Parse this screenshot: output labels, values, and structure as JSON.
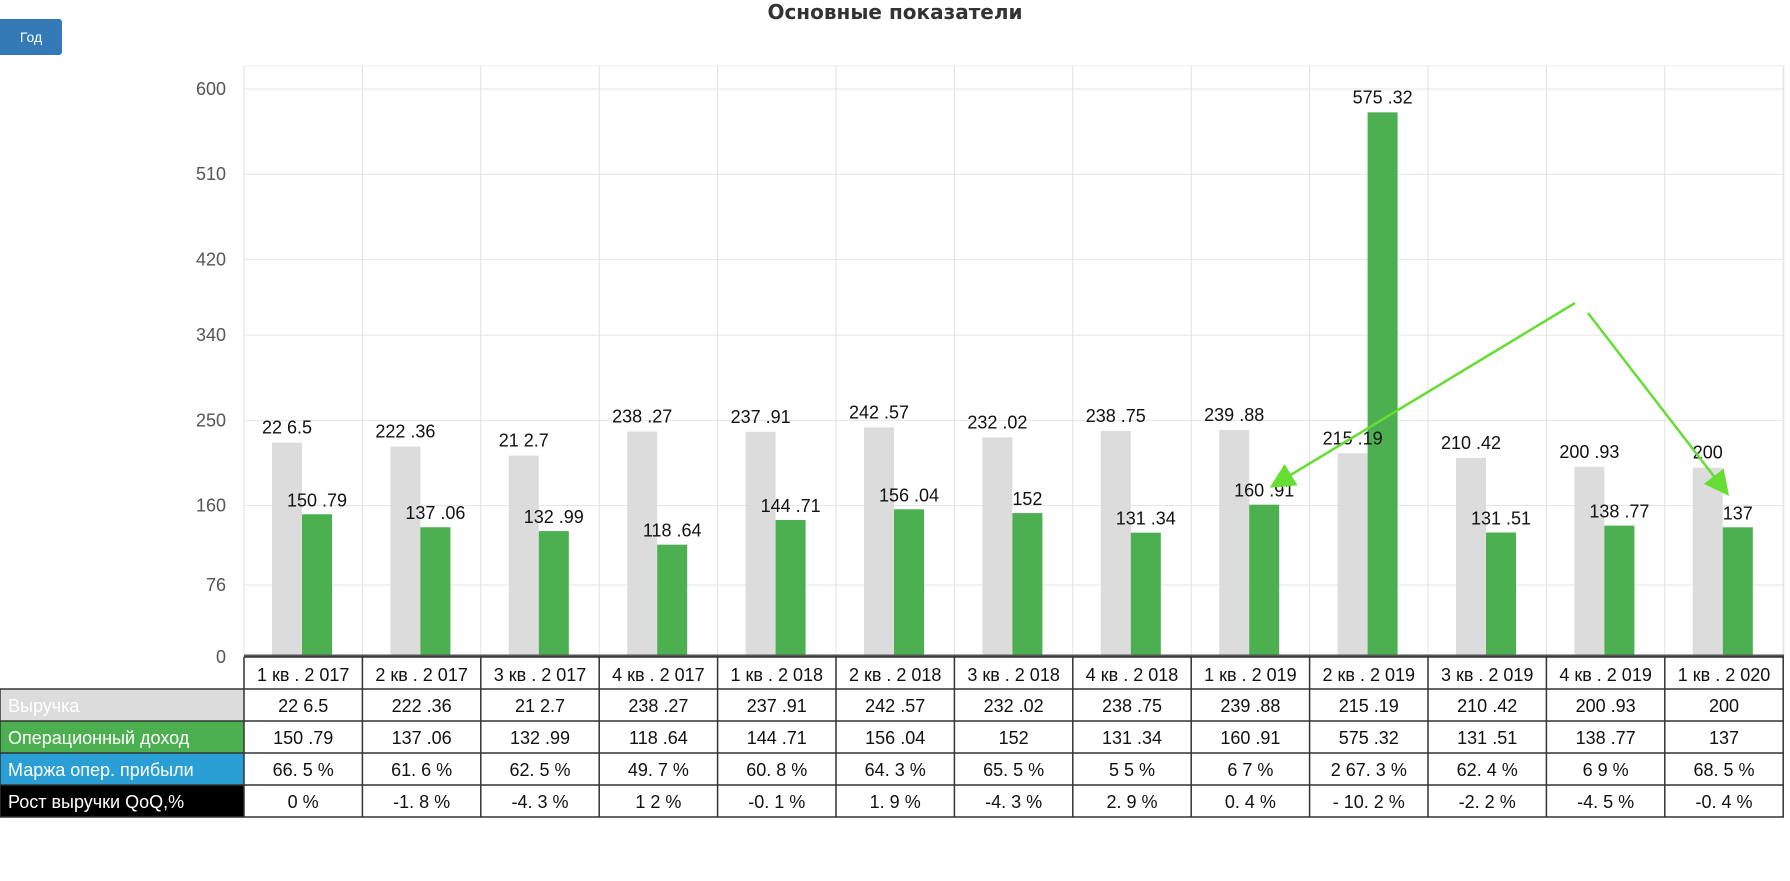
{
  "header": {
    "title": "Основные показатели",
    "year_button": "Год"
  },
  "colors": {
    "revenue": "#dcdcdc",
    "operating_income": "#4caf50",
    "margin": "#2a9fd6",
    "growth": "#000000",
    "annotation_arrow": "#66dd33"
  },
  "chart_data": {
    "type": "bar",
    "title": "Основные показатели",
    "ylim": [
      0,
      600
    ],
    "yticks": [
      "0",
      "76",
      "160",
      "250",
      "340",
      "420",
      "510",
      "600"
    ],
    "grid": true,
    "categories": [
      "1 кв . 2 017",
      "2 кв . 2 017",
      "3 кв . 2 017",
      "4 кв . 2 017",
      "1 кв . 2 018",
      "2 кв . 2 018",
      "3 кв . 2 018",
      "4 кв . 2 018",
      "1 кв . 2 019",
      "2 кв . 2 019",
      "3 кв . 2 019",
      "4 кв . 2 019",
      "1 кв . 2 020"
    ],
    "series": [
      {
        "name": "Выручка",
        "values": [
          226.5,
          222.36,
          212.7,
          238.27,
          237.91,
          242.57,
          232.02,
          238.75,
          239.88,
          215.19,
          210.42,
          200.93,
          200
        ],
        "labels": [
          "22 6.5",
          "222 .36",
          "21 2.7",
          "238 .27",
          "237 .91",
          "242 .57",
          "232 .02",
          "238 .75",
          "239 .88",
          "215 .19",
          "210 .42",
          "200 .93",
          "200"
        ]
      },
      {
        "name": "Операционный доход",
        "values": [
          150.79,
          137.06,
          132.99,
          118.64,
          144.71,
          156.04,
          152,
          131.34,
          160.91,
          575.32,
          131.51,
          138.77,
          137
        ],
        "labels": [
          "150 .79",
          "137 .06",
          "132 .99",
          "118 .64",
          "144 .71",
          "156 .04",
          "152",
          "131 .34",
          "160 .91",
          "575 .32",
          "131 .51",
          "138 .77",
          "137"
        ]
      }
    ],
    "table": [
      {
        "name": "Выручка",
        "cells": [
          "22 6.5",
          "222 .36",
          "21 2.7",
          "238 .27",
          "237 .91",
          "242 .57",
          "232 .02",
          "238 .75",
          "239 .88",
          "215 .19",
          "210 .42",
          "200 .93",
          "200"
        ]
      },
      {
        "name": "Операционный доход",
        "cells": [
          "150 .79",
          "137 .06",
          "132 .99",
          "118 .64",
          "144 .71",
          "156 .04",
          "152",
          "131 .34",
          "160 .91",
          "575 .32",
          "131 .51",
          "138 .77",
          "137"
        ]
      },
      {
        "name": "Маржа опер. прибыли",
        "cells": [
          "66. 5 %",
          "61. 6 %",
          "62. 5 %",
          "49. 7 %",
          "60. 8 %",
          "64. 3 %",
          "65. 5 %",
          "5 5 %",
          "6 7 %",
          "2 67. 3 %",
          "62. 4 %",
          "6 9 %",
          "68. 5 %"
        ]
      },
      {
        "name": "Рост выручки QoQ,%",
        "cells": [
          "0 %",
          "-1. 8 %",
          "-4. 3 %",
          "1 2 %",
          "-0. 1 %",
          "1. 9 %",
          "-4. 3 %",
          "2. 9 %",
          "0. 4 %",
          "- 10. 2 %",
          "-2. 2 %",
          "-4. 5 %",
          "-0. 4 %"
        ]
      }
    ]
  }
}
